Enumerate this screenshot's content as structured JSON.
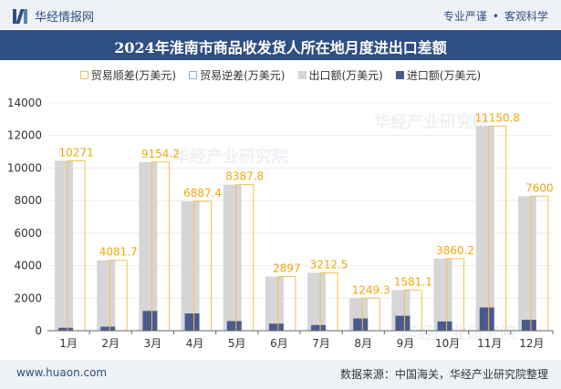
{
  "header": {
    "site_name": "华经情报网",
    "tag1": "专业严谨",
    "tag2": "客观科学",
    "title": "2024年淮南市商品收发货人所在地月度进出口差额"
  },
  "legend": {
    "positive": "贸易顺差(万美元)",
    "negative": "贸易逆差(万美元)",
    "export": "出口额(万美元)",
    "import": "进口额(万美元)"
  },
  "watermark": "华经产业研究院",
  "footer": {
    "url": "www.huaon.com",
    "source": "数据来源：中国海关，华经产业研究院整理"
  },
  "colors": {
    "export": "#d6d6d6",
    "import": "#4a5a8c",
    "surplus_outline": "#f2c14e",
    "label": "#f2a60c",
    "axis": "#666666"
  },
  "chart_data": {
    "type": "bar",
    "title": "2024年淮南市商品收发货人所在地月度进出口差额",
    "categories": [
      "1月",
      "2月",
      "3月",
      "4月",
      "5月",
      "6月",
      "7月",
      "8月",
      "9月",
      "10月",
      "11月",
      "12月"
    ],
    "y_ticks": [
      "0",
      "2000",
      "4000",
      "6000",
      "8000",
      "10000",
      "12000",
      "14000"
    ],
    "ylim": [
      0,
      14000
    ],
    "series": [
      {
        "name": "出口额(万美元)",
        "values": [
          10450,
          4330,
          10370,
          7950,
          8980,
          3330,
          3560,
          2000,
          2500,
          4430,
          12580,
          8270
        ]
      },
      {
        "name": "进口额(万美元)",
        "values": [
          180,
          248,
          1216,
          1063,
          592,
          433,
          348,
          751,
          919,
          570,
          1429,
          670
        ]
      },
      {
        "name": "贸易顺差(万美元)",
        "values": [
          10271,
          4081.7,
          9154.2,
          6887.4,
          8387.8,
          2897,
          3212.5,
          1249.3,
          1581.1,
          3860.2,
          11150.8,
          7600
        ]
      }
    ],
    "surplus_labels": [
      "10271",
      "4081.7",
      "9154.2",
      "6887.4",
      "8387.8",
      "2897",
      "3212.5",
      "1249.3",
      "1581.1",
      "3860.2",
      "11150.8",
      "7600"
    ]
  }
}
